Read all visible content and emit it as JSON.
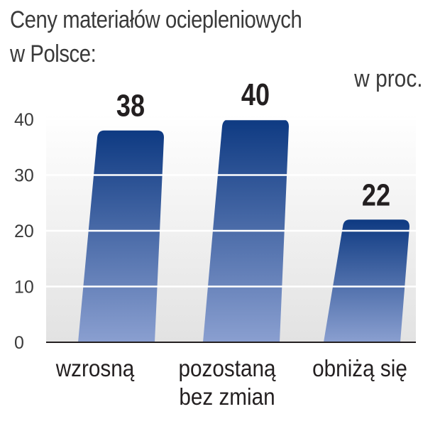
{
  "chart_data": {
    "type": "bar",
    "title": "Ceny materiałów ociepleniowych w Polsce:",
    "title_lines": [
      "Ceny materiałów ociepleniowych",
      "w Polsce:"
    ],
    "unit": "w proc.",
    "categories": [
      "wzrosną",
      "pozostaną bez zmian",
      "obniżą się"
    ],
    "category_lines": [
      [
        "wzrosną"
      ],
      [
        "pozostaną",
        "bez zmian"
      ],
      [
        "obniżą się"
      ]
    ],
    "values": [
      38,
      40,
      22
    ],
    "value_labels": [
      "38",
      "40",
      "22"
    ],
    "yticks": [
      0,
      10,
      20,
      30,
      40
    ],
    "ylim": [
      0,
      40
    ],
    "grid": true,
    "colors": {
      "bar_top": "#0e3a82",
      "bar_bottom": "#8a9fd0",
      "plot_bg": "#e6e6e6",
      "grid": "#ffffff"
    }
  }
}
